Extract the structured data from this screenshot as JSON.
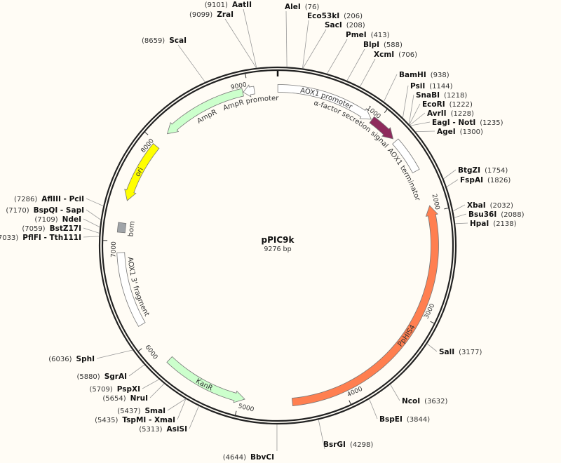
{
  "map": {
    "name": "pPIC9k",
    "length_label": "9276 bp",
    "length": 9276
  },
  "features": [
    {
      "name": "AOX1 promoter",
      "start": 1,
      "end": 941,
      "direction": "forward",
      "color": "#ffffff"
    },
    {
      "name": "α-factor secretion signal",
      "start": 949,
      "end": 1218,
      "direction": "forward",
      "color": "#8e2a5c"
    },
    {
      "name": "AOX1 terminator",
      "start": 1250,
      "end": 1590,
      "direction": "none",
      "color": "#ffffff"
    },
    {
      "name": "PpHIS4",
      "start": 1940,
      "end": 4500,
      "direction": "reverse",
      "color": "#ff7f50"
    },
    {
      "name": "KanR",
      "start": 4950,
      "end": 5760,
      "direction": "reverse",
      "color": "#ccffcc"
    },
    {
      "name": "AOX1 3' fragment",
      "start": 6180,
      "end": 6890,
      "direction": "none",
      "color": "#ffffff"
    },
    {
      "name": "bom",
      "start": 7080,
      "end": 7170,
      "direction": "none",
      "color": "#a0a4a8"
    },
    {
      "name": "ori",
      "start": 7385,
      "end": 7970,
      "direction": "reverse",
      "color": "#ffff00"
    },
    {
      "name": "AmpR",
      "start": 8125,
      "end": 8945,
      "direction": "reverse",
      "color": "#ccffcc"
    },
    {
      "name": "AmpR promoter",
      "start": 8950,
      "end": 9055,
      "direction": "reverse",
      "color": "#ffffff"
    }
  ],
  "ticks": [
    {
      "pos": 1000,
      "label": "1000"
    },
    {
      "pos": 2000,
      "label": "2000"
    },
    {
      "pos": 3000,
      "label": "3000"
    },
    {
      "pos": 4000,
      "label": "4000"
    },
    {
      "pos": 5000,
      "label": "5000"
    },
    {
      "pos": 6000,
      "label": "6000"
    },
    {
      "pos": 7000,
      "label": "7000"
    },
    {
      "pos": 8000,
      "label": "8000"
    },
    {
      "pos": 9000,
      "label": "9000"
    }
  ],
  "enzymes": [
    {
      "name": "AleI",
      "pos": 76,
      "pos_label": "(76)"
    },
    {
      "name": "Eco53kI",
      "pos": 206,
      "pos_label": "(206)"
    },
    {
      "name": "SacI",
      "pos": 208,
      "pos_label": "(208)"
    },
    {
      "name": "PmeI",
      "pos": 413,
      "pos_label": "(413)"
    },
    {
      "name": "BlpI",
      "pos": 588,
      "pos_label": "(588)"
    },
    {
      "name": "XcmI",
      "pos": 706,
      "pos_label": "(706)"
    },
    {
      "name": "BamHI",
      "pos": 938,
      "pos_label": "(938)"
    },
    {
      "name": "PsiI",
      "pos": 1144,
      "pos_label": "(1144)"
    },
    {
      "name": "SnaBI",
      "pos": 1218,
      "pos_label": "(1218)"
    },
    {
      "name": "EcoRI",
      "pos": 1222,
      "pos_label": "(1222)"
    },
    {
      "name": "AvrII",
      "pos": 1228,
      "pos_label": "(1228)"
    },
    {
      "name": "EagI - NotI",
      "pos": 1235,
      "pos_label": "(1235)"
    },
    {
      "name": "AgeI",
      "pos": 1300,
      "pos_label": "(1300)"
    },
    {
      "name": "BtgZI",
      "pos": 1754,
      "pos_label": "(1754)"
    },
    {
      "name": "FspAI",
      "pos": 1826,
      "pos_label": "(1826)"
    },
    {
      "name": "XbaI",
      "pos": 2032,
      "pos_label": "(2032)"
    },
    {
      "name": "Bsu36I",
      "pos": 2088,
      "pos_label": "(2088)"
    },
    {
      "name": "HpaI",
      "pos": 2138,
      "pos_label": "(2138)"
    },
    {
      "name": "SalI",
      "pos": 3177,
      "pos_label": "(3177)"
    },
    {
      "name": "NcoI",
      "pos": 3632,
      "pos_label": "(3632)"
    },
    {
      "name": "BspEI",
      "pos": 3844,
      "pos_label": "(3844)"
    },
    {
      "name": "BsrGI",
      "pos": 4298,
      "pos_label": "(4298)"
    },
    {
      "name": "BbvCI",
      "pos": 4644,
      "pos_label": "(4644)"
    },
    {
      "name": "AsiSI",
      "pos": 5313,
      "pos_label": "(5313)"
    },
    {
      "name": "TspMI - XmaI",
      "pos": 5435,
      "pos_label": "(5435)"
    },
    {
      "name": "SmaI",
      "pos": 5437,
      "pos_label": "(5437)"
    },
    {
      "name": "NruI",
      "pos": 5654,
      "pos_label": "(5654)"
    },
    {
      "name": "PspXI",
      "pos": 5709,
      "pos_label": "(5709)"
    },
    {
      "name": "SgrAI",
      "pos": 5880,
      "pos_label": "(5880)"
    },
    {
      "name": "SphI",
      "pos": 6036,
      "pos_label": "(6036)"
    },
    {
      "name": "PflFI - Tth111I",
      "pos": 7033,
      "pos_label": "(7033)"
    },
    {
      "name": "BstZ17I",
      "pos": 7059,
      "pos_label": "(7059)"
    },
    {
      "name": "NdeI",
      "pos": 7109,
      "pos_label": "(7109)"
    },
    {
      "name": "BspQI - SapI",
      "pos": 7170,
      "pos_label": "(7170)"
    },
    {
      "name": "AflIII - PciI",
      "pos": 7286,
      "pos_label": "(7286)"
    },
    {
      "name": "ScaI",
      "pos": 8659,
      "pos_label": "(8659)"
    },
    {
      "name": "ZraI",
      "pos": 9099,
      "pos_label": "(9099)"
    },
    {
      "name": "AatII",
      "pos": 9101,
      "pos_label": "(9101)"
    }
  ]
}
